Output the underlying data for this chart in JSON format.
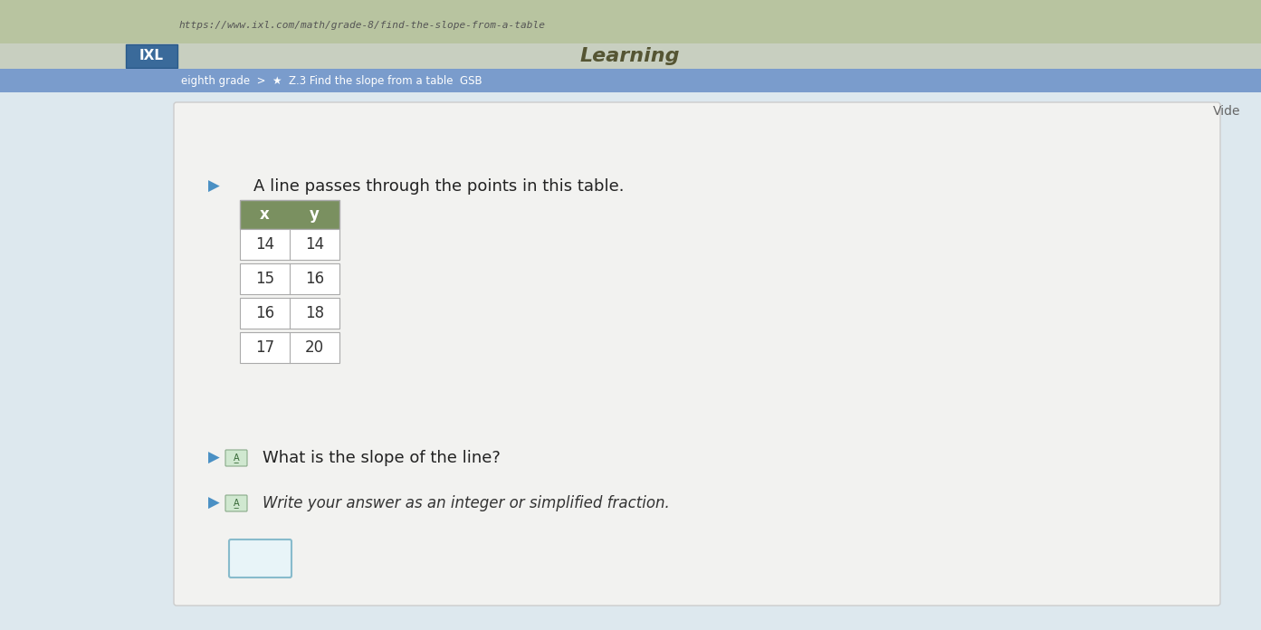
{
  "bg_top_color": "#b8c4a0",
  "bg_browser_color": "#c8c8b8",
  "bg_content_color": "#dde8ee",
  "bg_white_color": "#f0f0f0",
  "url_text": "https://www.ixl.com/math/grade-8/find-the-slope-from-a-table",
  "header_text": "Learning",
  "breadcrumb_text": "eighth grade  >  ★  Z.3 Find the slope from a table  GSB",
  "vide_text": "Vide",
  "question_text": "A line passes through the points in this table.",
  "table_header": [
    "x",
    "y"
  ],
  "table_header_bg": "#7a9060",
  "table_data": [
    [
      "14",
      "14"
    ],
    [
      "15",
      "16"
    ],
    [
      "16",
      "18"
    ],
    [
      "17",
      "20"
    ]
  ],
  "table_border_color": "#aaaaaa",
  "table_text_color": "#333333",
  "question2_text": "What is the slope of the line?",
  "instruction_text": "Write your answer as an integer or simplified fraction.",
  "answer_box_color": "#e8f4f8",
  "answer_box_border": "#88bbcc",
  "icon_color": "#4a90c4",
  "ixl_bg": "#3a6a9a",
  "nav_bar_color": "#7a9ccc"
}
